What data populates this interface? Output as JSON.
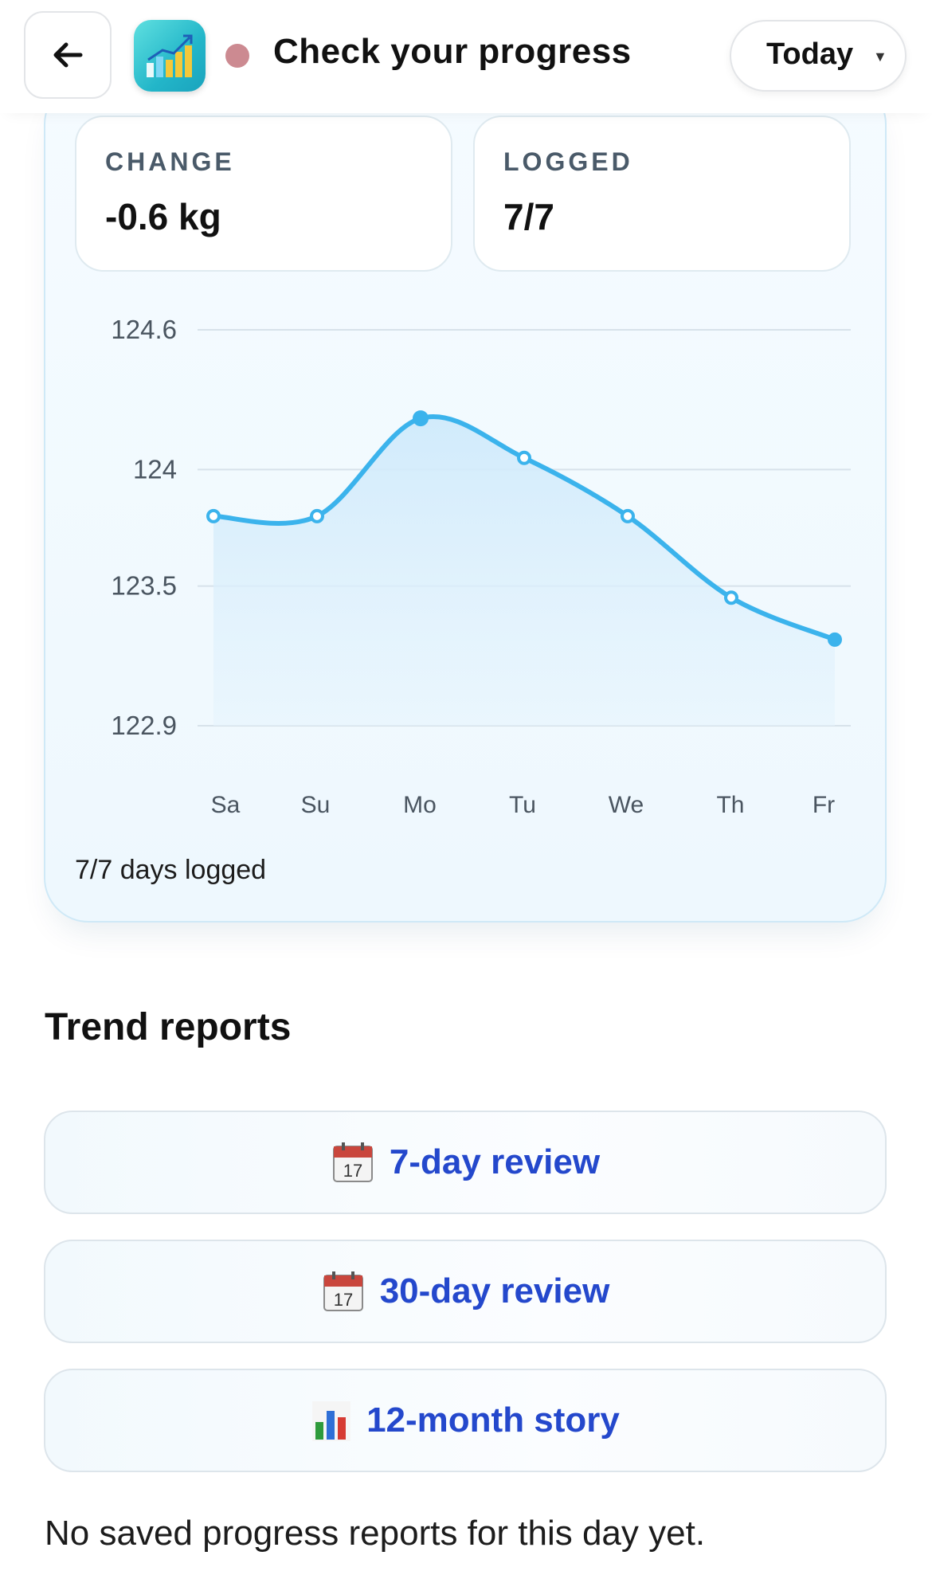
{
  "header": {
    "title": "Check your progress",
    "period_selector": "Today"
  },
  "summary": {
    "change_label": "CHANGE",
    "change_value": "-0.6 kg",
    "logged_label": "LOGGED",
    "logged_value": "7/7"
  },
  "chart_data": {
    "type": "area",
    "x": [
      "Sa",
      "Su",
      "Mo",
      "Tu",
      "We",
      "Th",
      "Fr"
    ],
    "series": [
      {
        "values": [
          123.8,
          123.8,
          124.22,
          124.05,
          123.8,
          123.45,
          123.27
        ]
      }
    ],
    "y_ticks": [
      "124.6",
      "124",
      "123.5",
      "122.9"
    ],
    "ylim": [
      122.9,
      124.6
    ],
    "grid": true,
    "line_color": "#3bb3ec",
    "fill_color": "#d6eefb"
  },
  "days_logged_text": "7/7 days logged",
  "trend_reports": {
    "title": "Trend reports",
    "buttons": [
      {
        "icon": "calendar-icon",
        "label": "7-day review"
      },
      {
        "icon": "calendar-icon",
        "label": "30-day review"
      },
      {
        "icon": "bar-chart-icon",
        "label": "12-month story"
      }
    ]
  },
  "empty_note": "No saved progress reports for this day yet.",
  "colors": {
    "accent_text": "#2448cc",
    "status_dot": "#cc8a91",
    "card_border": "#cfe9f7"
  }
}
